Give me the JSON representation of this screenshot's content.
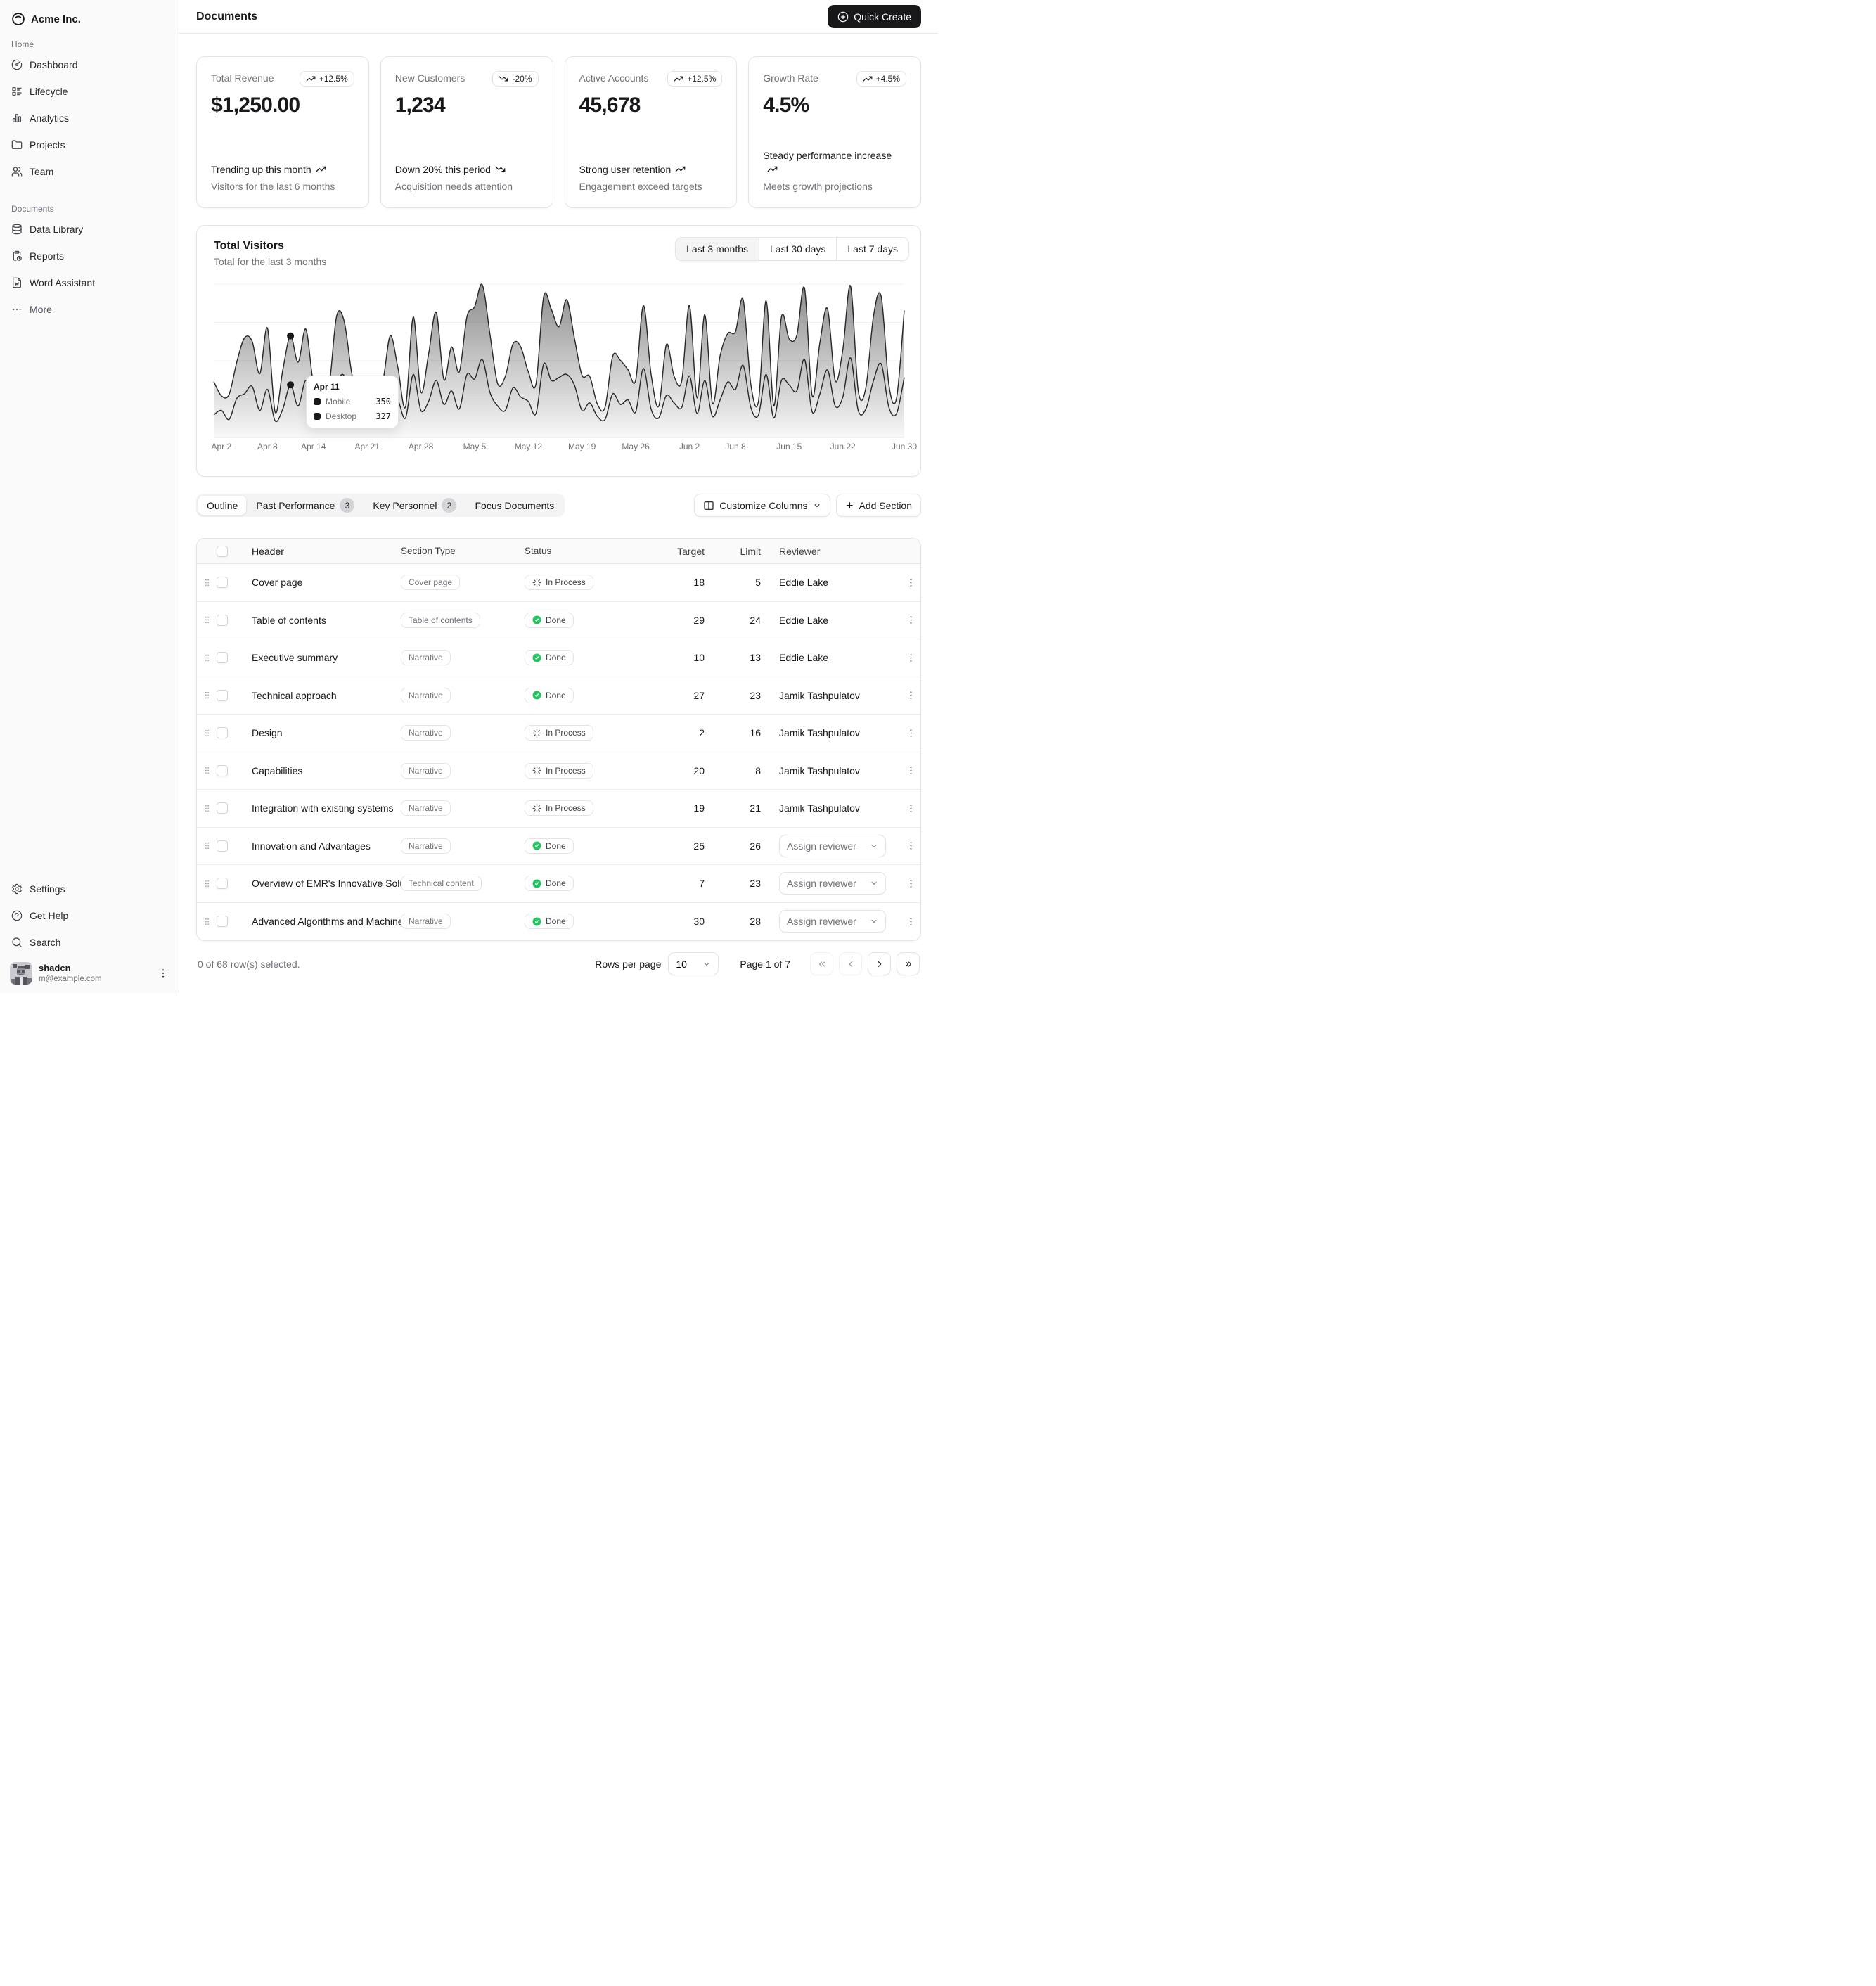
{
  "brand": {
    "name": "Acme Inc."
  },
  "sidebar": {
    "groups": [
      {
        "label": "Home",
        "items": [
          {
            "icon": "circle-gauge-icon",
            "label": "Dashboard"
          },
          {
            "icon": "list-details-icon",
            "label": "Lifecycle"
          },
          {
            "icon": "chart-bar-icon",
            "label": "Analytics"
          },
          {
            "icon": "folder-icon",
            "label": "Projects"
          },
          {
            "icon": "users-icon",
            "label": "Team"
          }
        ]
      },
      {
        "label": "Documents",
        "items": [
          {
            "icon": "database-icon",
            "label": "Data Library"
          },
          {
            "icon": "clipboard-report-icon",
            "label": "Reports"
          },
          {
            "icon": "file-word-icon",
            "label": "Word Assistant"
          },
          {
            "icon": "ellipsis-icon",
            "label": "More"
          }
        ]
      }
    ],
    "footer_items": [
      {
        "icon": "settings-icon",
        "label": "Settings"
      },
      {
        "icon": "help-circle-icon",
        "label": "Get Help"
      },
      {
        "icon": "search-icon",
        "label": "Search"
      }
    ],
    "user": {
      "name": "shadcn",
      "email": "m@example.com"
    }
  },
  "header": {
    "title": "Documents",
    "quick_create_label": "Quick Create"
  },
  "stat_cards": [
    {
      "label": "Total Revenue",
      "badge": "+12.5%",
      "trend": "up",
      "value": "$1,250.00",
      "footer_title": "Trending up this month",
      "footer_desc": "Visitors for the last 6 months"
    },
    {
      "label": "New Customers",
      "badge": "-20%",
      "trend": "down",
      "value": "1,234",
      "footer_title": "Down 20% this period",
      "footer_desc": "Acquisition needs attention"
    },
    {
      "label": "Active Accounts",
      "badge": "+12.5%",
      "trend": "up",
      "value": "45,678",
      "footer_title": "Strong user retention",
      "footer_desc": "Engagement exceed targets"
    },
    {
      "label": "Growth Rate",
      "badge": "+4.5%",
      "trend": "up",
      "value": "4.5%",
      "footer_title": "Steady performance increase",
      "footer_desc": "Meets growth projections"
    }
  ],
  "chart_card": {
    "title": "Total Visitors",
    "subtitle": "Total for the last 3 months",
    "range_options": [
      "Last 3 months",
      "Last 30 days",
      "Last 7 days"
    ],
    "active_range": "Last 3 months",
    "tooltip": {
      "date": "Apr 11",
      "rows": [
        {
          "label": "Mobile",
          "value": "350"
        },
        {
          "label": "Desktop",
          "value": "327"
        }
      ]
    }
  },
  "chart_data": {
    "type": "area",
    "stacked": true,
    "title": "Total Visitors",
    "color": "#18181b",
    "ylim": [
      0,
      1022
    ],
    "grid_sections": 4,
    "legend_position": "tooltip-only",
    "highlight_index": 10,
    "x_ticks": [
      {
        "label": "Apr 2",
        "index": 1
      },
      {
        "label": "Apr 8",
        "index": 7
      },
      {
        "label": "Apr 14",
        "index": 13
      },
      {
        "label": "Apr 21",
        "index": 20
      },
      {
        "label": "Apr 28",
        "index": 27
      },
      {
        "label": "May 5",
        "index": 34
      },
      {
        "label": "May 12",
        "index": 41
      },
      {
        "label": "May 19",
        "index": 48
      },
      {
        "label": "May 26",
        "index": 55
      },
      {
        "label": "Jun 2",
        "index": 62
      },
      {
        "label": "Jun 8",
        "index": 68
      },
      {
        "label": "Jun 15",
        "index": 75
      },
      {
        "label": "Jun 22",
        "index": 82
      },
      {
        "label": "Jun 30",
        "index": 90
      }
    ],
    "x": [
      "Apr 1",
      "Apr 2",
      "Apr 3",
      "Apr 4",
      "Apr 5",
      "Apr 6",
      "Apr 7",
      "Apr 8",
      "Apr 9",
      "Apr 10",
      "Apr 11",
      "Apr 12",
      "Apr 13",
      "Apr 14",
      "Apr 15",
      "Apr 16",
      "Apr 17",
      "Apr 18",
      "Apr 19",
      "Apr 20",
      "Apr 21",
      "Apr 22",
      "Apr 23",
      "Apr 24",
      "Apr 25",
      "Apr 26",
      "Apr 27",
      "Apr 28",
      "Apr 29",
      "Apr 30",
      "May 1",
      "May 2",
      "May 3",
      "May 4",
      "May 5",
      "May 6",
      "May 7",
      "May 8",
      "May 9",
      "May 10",
      "May 11",
      "May 12",
      "May 13",
      "May 14",
      "May 15",
      "May 16",
      "May 17",
      "May 18",
      "May 19",
      "May 20",
      "May 21",
      "May 22",
      "May 23",
      "May 24",
      "May 25",
      "May 26",
      "May 27",
      "May 28",
      "May 29",
      "May 30",
      "May 31",
      "Jun 1",
      "Jun 2",
      "Jun 3",
      "Jun 4",
      "Jun 5",
      "Jun 6",
      "Jun 7",
      "Jun 8",
      "Jun 9",
      "Jun 10",
      "Jun 11",
      "Jun 12",
      "Jun 13",
      "Jun 14",
      "Jun 15",
      "Jun 16",
      "Jun 17",
      "Jun 18",
      "Jun 19",
      "Jun 20",
      "Jun 21",
      "Jun 22",
      "Jun 23",
      "Jun 24",
      "Jun 25",
      "Jun 26",
      "Jun 27",
      "Jun 28",
      "Jun 29",
      "Jun 30"
    ],
    "series": [
      {
        "name": "Mobile",
        "values": [
          150,
          180,
          120,
          260,
          290,
          340,
          180,
          320,
          110,
          190,
          350,
          210,
          380,
          220,
          170,
          190,
          360,
          410,
          180,
          150,
          200,
          170,
          230,
          290,
          250,
          130,
          420,
          180,
          240,
          380,
          220,
          310,
          190,
          420,
          390,
          520,
          300,
          210,
          180,
          330,
          270,
          240,
          160,
          490,
          380,
          400,
          420,
          350,
          180,
          230,
          140,
          120,
          290,
          220,
          250,
          170,
          460,
          190,
          130,
          280,
          230,
          200,
          410,
          160,
          380,
          140,
          250,
          370,
          320,
          480,
          200,
          150,
          420,
          130,
          380,
          350,
          310,
          520,
          170,
          290,
          450,
          210,
          270,
          530,
          180,
          190,
          380,
          490,
          200,
          160,
          400
        ]
      },
      {
        "name": "Desktop",
        "values": [
          222,
          97,
          167,
          242,
          373,
          301,
          245,
          409,
          59,
          261,
          327,
          292,
          342,
          137,
          120,
          138,
          446,
          364,
          243,
          89,
          137,
          224,
          138,
          387,
          215,
          75,
          383,
          122,
          315,
          454,
          165,
          293,
          247,
          385,
          481,
          498,
          388,
          149,
          227,
          293,
          335,
          197,
          197,
          448,
          473,
          338,
          499,
          315,
          235,
          177,
          82,
          81,
          252,
          294,
          201,
          213,
          420,
          233,
          78,
          340,
          178,
          178,
          470,
          103,
          439,
          88,
          294,
          323,
          385,
          438,
          155,
          92,
          492,
          81,
          426,
          307,
          371,
          475,
          107,
          341,
          408,
          169,
          317,
          480,
          132,
          141,
          434,
          448,
          149,
          103,
          446
        ]
      }
    ]
  },
  "tabs": [
    {
      "label": "Outline",
      "active": true
    },
    {
      "label": "Past Performance",
      "badge": "3"
    },
    {
      "label": "Key Personnel",
      "badge": "2"
    },
    {
      "label": "Focus Documents"
    }
  ],
  "table_actions": {
    "customize": "Customize Columns",
    "add_section": "Add Section"
  },
  "table": {
    "columns": [
      "Header",
      "Section Type",
      "Status",
      "Target",
      "Limit",
      "Reviewer"
    ],
    "assign_placeholder": "Assign reviewer",
    "rows": [
      {
        "header": "Cover page",
        "type": "Cover page",
        "status": "In Process",
        "target": "18",
        "limit": "5",
        "reviewer": "Eddie Lake"
      },
      {
        "header": "Table of contents",
        "type": "Table of contents",
        "status": "Done",
        "target": "29",
        "limit": "24",
        "reviewer": "Eddie Lake"
      },
      {
        "header": "Executive summary",
        "type": "Narrative",
        "status": "Done",
        "target": "10",
        "limit": "13",
        "reviewer": "Eddie Lake"
      },
      {
        "header": "Technical approach",
        "type": "Narrative",
        "status": "Done",
        "target": "27",
        "limit": "23",
        "reviewer": "Jamik Tashpulatov"
      },
      {
        "header": "Design",
        "type": "Narrative",
        "status": "In Process",
        "target": "2",
        "limit": "16",
        "reviewer": "Jamik Tashpulatov"
      },
      {
        "header": "Capabilities",
        "type": "Narrative",
        "status": "In Process",
        "target": "20",
        "limit": "8",
        "reviewer": "Jamik Tashpulatov"
      },
      {
        "header": "Integration with existing systems",
        "type": "Narrative",
        "status": "In Process",
        "target": "19",
        "limit": "21",
        "reviewer": "Jamik Tashpulatov"
      },
      {
        "header": "Innovation and Advantages",
        "type": "Narrative",
        "status": "Done",
        "target": "25",
        "limit": "26",
        "reviewer": null
      },
      {
        "header": "Overview of EMR's Innovative Solutions",
        "type": "Technical content",
        "status": "Done",
        "target": "7",
        "limit": "23",
        "reviewer": null
      },
      {
        "header": "Advanced Algorithms and Machine Learning",
        "type": "Narrative",
        "status": "Done",
        "target": "30",
        "limit": "28",
        "reviewer": null
      }
    ]
  },
  "footer": {
    "selection": "0 of 68 row(s) selected.",
    "rows_per_page_label": "Rows per page",
    "rows_per_page": "10",
    "page_info": "Page 1 of 7"
  }
}
